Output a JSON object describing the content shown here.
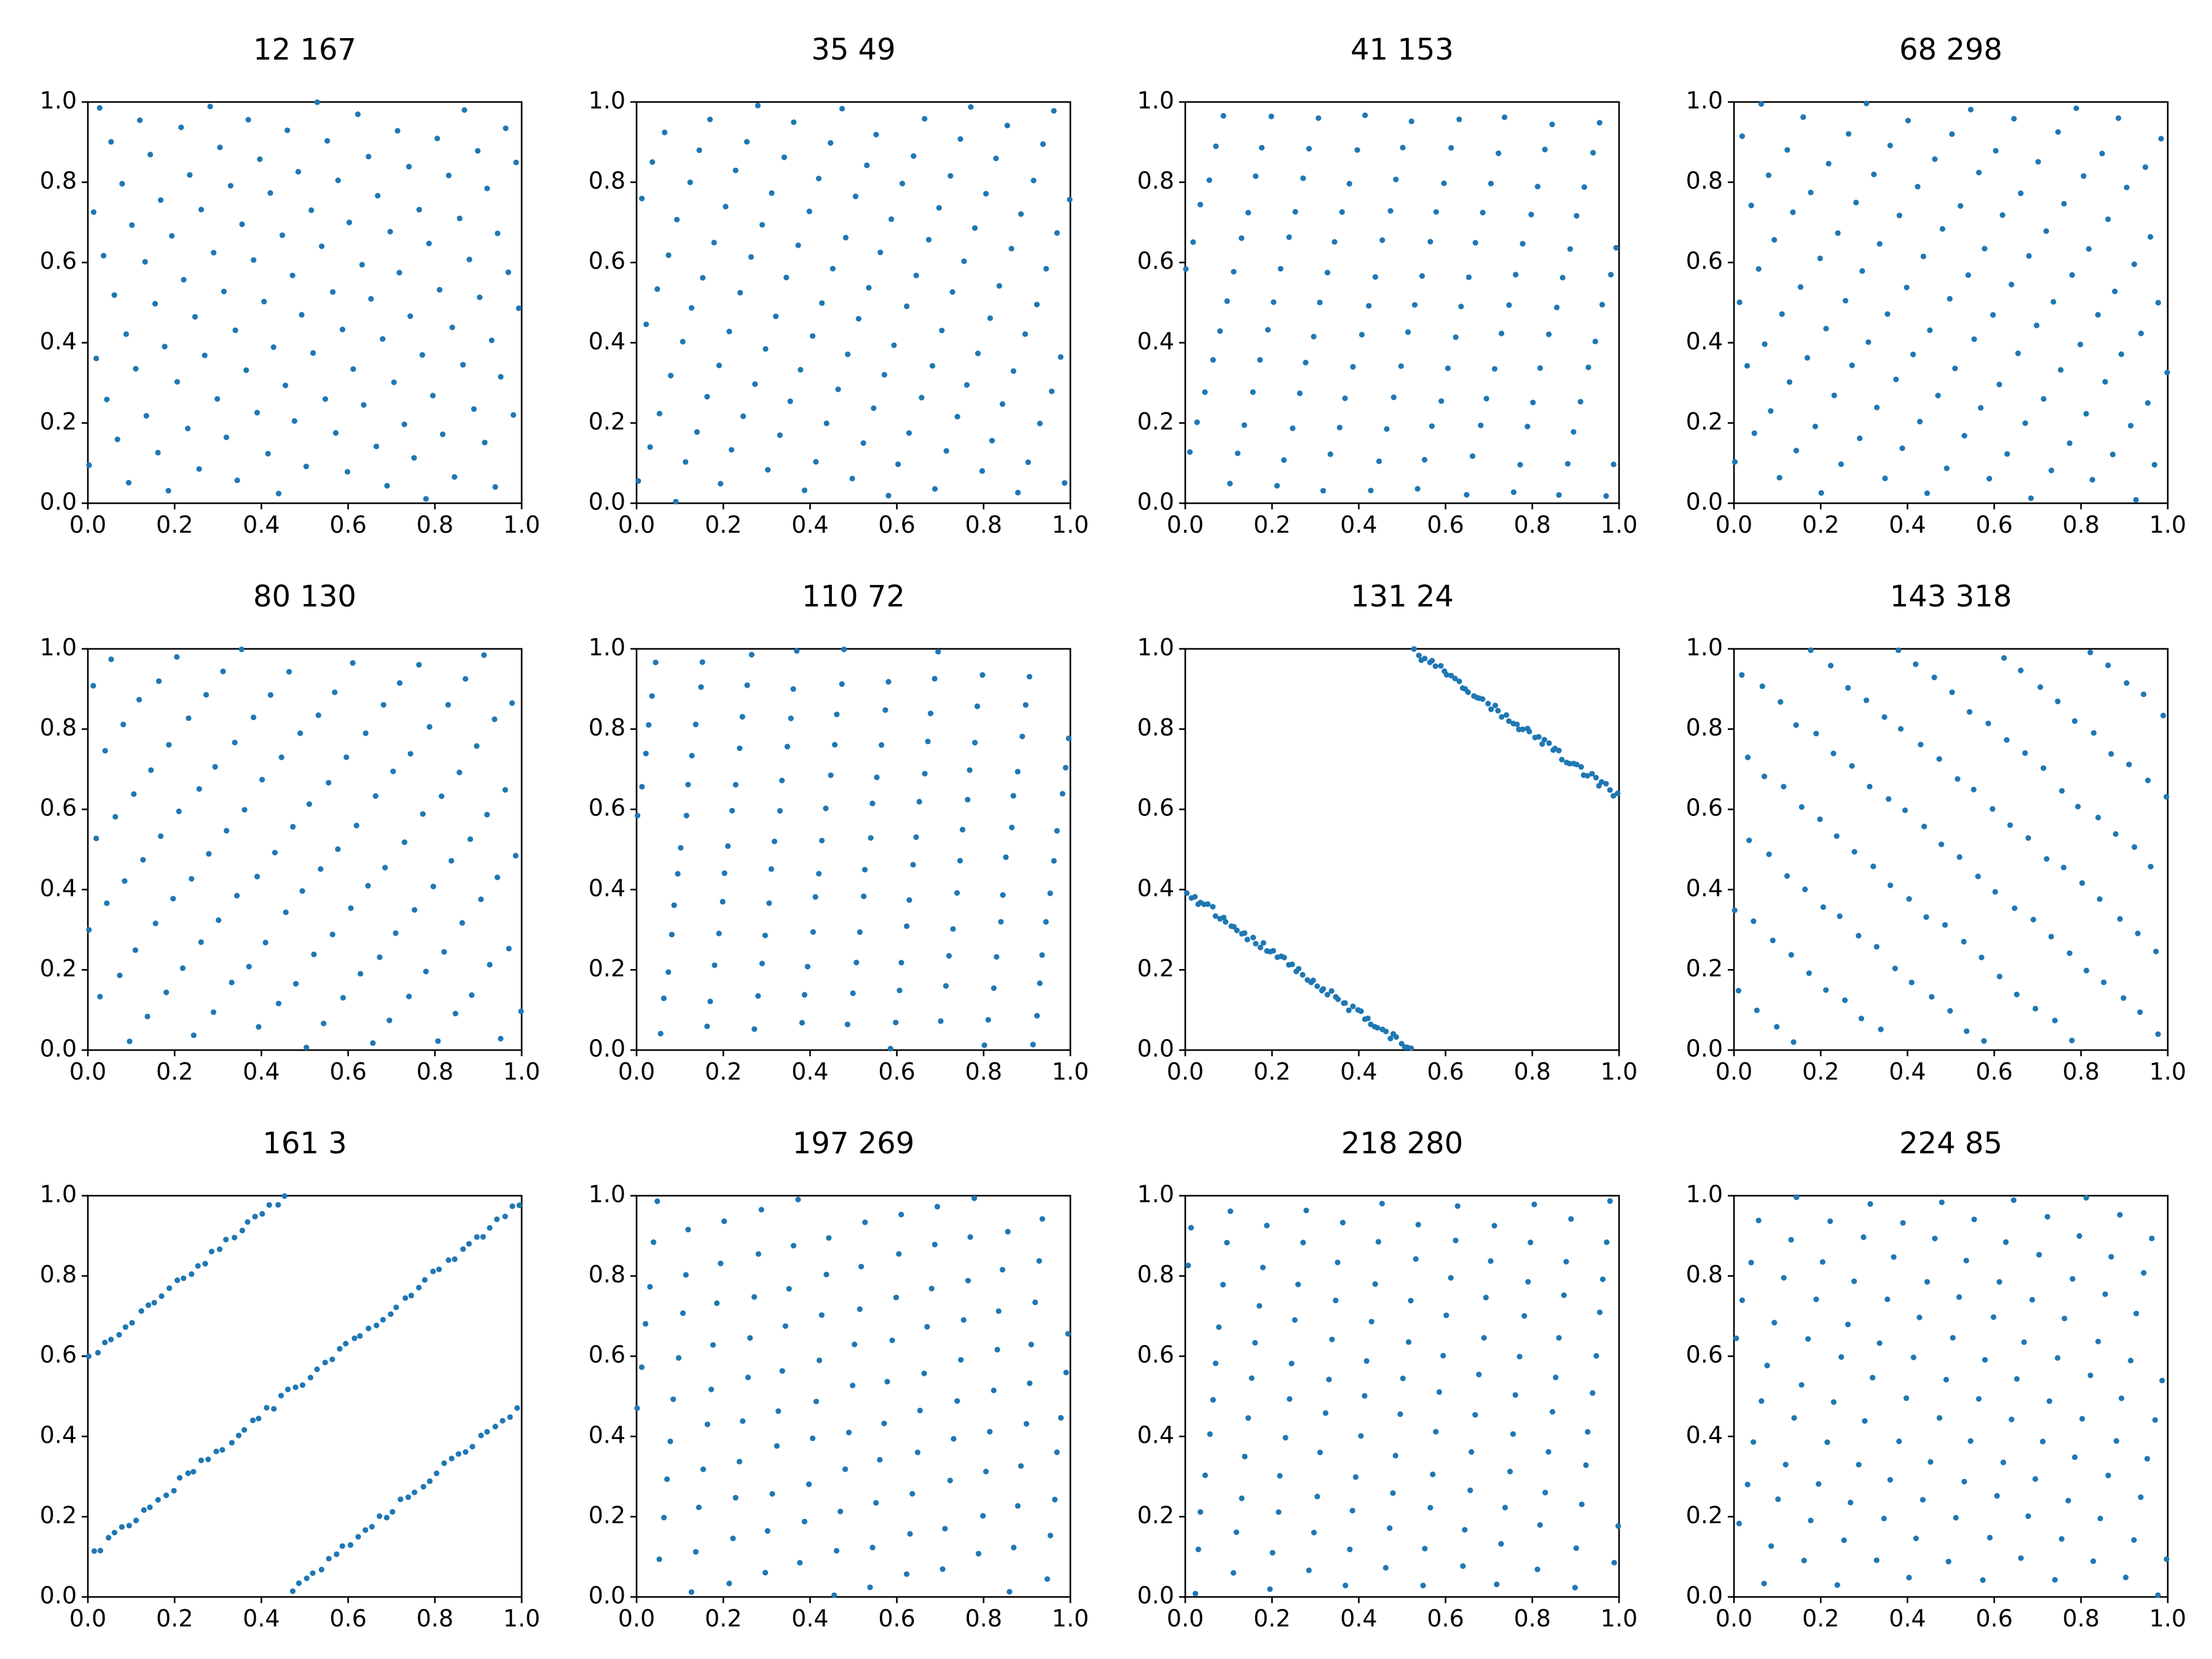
{
  "figure": {
    "title": ""
  },
  "chart_data": [
    {
      "type": "scatter",
      "title": "12 167",
      "xlim": [
        0,
        1
      ],
      "ylim": [
        0,
        1
      ],
      "xticks": [
        "0.0",
        "0.2",
        "0.4",
        "0.6",
        "0.8",
        "1.0"
      ],
      "yticks": [
        "0.0",
        "0.2",
        "0.4",
        "0.6",
        "0.8",
        "1.0"
      ],
      "color": "#1f77b4",
      "grid": false,
      "params": [
        12,
        167
      ],
      "count": 120
    },
    {
      "type": "scatter",
      "title": "35 49",
      "xlim": [
        0,
        1
      ],
      "ylim": [
        0,
        1
      ],
      "xticks": [
        "0.0",
        "0.2",
        "0.4",
        "0.6",
        "0.8",
        "1.0"
      ],
      "yticks": [
        "0.0",
        "0.2",
        "0.4",
        "0.6",
        "0.8",
        "1.0"
      ],
      "color": "#1f77b4",
      "grid": false,
      "params": [
        35,
        49
      ],
      "count": 120
    },
    {
      "type": "scatter",
      "title": "41 153",
      "xlim": [
        0,
        1
      ],
      "ylim": [
        0,
        1
      ],
      "xticks": [
        "0.0",
        "0.2",
        "0.4",
        "0.6",
        "0.8",
        "1.0"
      ],
      "yticks": [
        "0.0",
        "0.2",
        "0.4",
        "0.6",
        "0.8",
        "1.0"
      ],
      "color": "#1f77b4",
      "grid": false,
      "params": [
        41,
        153
      ],
      "count": 120
    },
    {
      "type": "scatter",
      "title": "68 298",
      "xlim": [
        0,
        1
      ],
      "ylim": [
        0,
        1
      ],
      "xticks": [
        "0.0",
        "0.2",
        "0.4",
        "0.6",
        "0.8",
        "1.0"
      ],
      "yticks": [
        "0.0",
        "0.2",
        "0.4",
        "0.6",
        "0.8",
        "1.0"
      ],
      "color": "#1f77b4",
      "grid": false,
      "params": [
        68,
        298
      ],
      "count": 120
    },
    {
      "type": "scatter",
      "title": "80 130",
      "xlim": [
        0,
        1
      ],
      "ylim": [
        0,
        1
      ],
      "xticks": [
        "0.0",
        "0.2",
        "0.4",
        "0.6",
        "0.8",
        "1.0"
      ],
      "yticks": [
        "0.0",
        "0.2",
        "0.4",
        "0.6",
        "0.8",
        "1.0"
      ],
      "color": "#1f77b4",
      "grid": false,
      "params": [
        80,
        130
      ],
      "count": 120
    },
    {
      "type": "scatter",
      "title": "110 72",
      "xlim": [
        0,
        1
      ],
      "ylim": [
        0,
        1
      ],
      "xticks": [
        "0.0",
        "0.2",
        "0.4",
        "0.6",
        "0.8",
        "1.0"
      ],
      "yticks": [
        "0.0",
        "0.2",
        "0.4",
        "0.6",
        "0.8",
        "1.0"
      ],
      "color": "#1f77b4",
      "grid": false,
      "params": [
        110,
        72
      ],
      "count": 120
    },
    {
      "type": "scatter",
      "title": "131 24",
      "xlim": [
        0,
        1
      ],
      "ylim": [
        0,
        1
      ],
      "xticks": [
        "0.0",
        "0.2",
        "0.4",
        "0.6",
        "0.8",
        "1.0"
      ],
      "yticks": [
        "0.0",
        "0.2",
        "0.4",
        "0.6",
        "0.8",
        "1.0"
      ],
      "color": "#1f77b4",
      "grid": false,
      "params": [
        131,
        24
      ],
      "count": 120
    },
    {
      "type": "scatter",
      "title": "143 318",
      "xlim": [
        0,
        1
      ],
      "ylim": [
        0,
        1
      ],
      "xticks": [
        "0.0",
        "0.2",
        "0.4",
        "0.6",
        "0.8",
        "1.0"
      ],
      "yticks": [
        "0.0",
        "0.2",
        "0.4",
        "0.6",
        "0.8",
        "1.0"
      ],
      "color": "#1f77b4",
      "grid": false,
      "params": [
        143,
        318
      ],
      "count": 120
    },
    {
      "type": "scatter",
      "title": "161 3",
      "xlim": [
        0,
        1
      ],
      "ylim": [
        0,
        1
      ],
      "xticks": [
        "0.0",
        "0.2",
        "0.4",
        "0.6",
        "0.8",
        "1.0"
      ],
      "yticks": [
        "0.0",
        "0.2",
        "0.4",
        "0.6",
        "0.8",
        "1.0"
      ],
      "color": "#1f77b4",
      "grid": false,
      "params": [
        161,
        3
      ],
      "count": 120
    },
    {
      "type": "scatter",
      "title": "197 269",
      "xlim": [
        0,
        1
      ],
      "ylim": [
        0,
        1
      ],
      "xticks": [
        "0.0",
        "0.2",
        "0.4",
        "0.6",
        "0.8",
        "1.0"
      ],
      "yticks": [
        "0.0",
        "0.2",
        "0.4",
        "0.6",
        "0.8",
        "1.0"
      ],
      "color": "#1f77b4",
      "grid": false,
      "params": [
        197,
        269
      ],
      "count": 120
    },
    {
      "type": "scatter",
      "title": "218 280",
      "xlim": [
        0,
        1
      ],
      "ylim": [
        0,
        1
      ],
      "xticks": [
        "0.0",
        "0.2",
        "0.4",
        "0.6",
        "0.8",
        "1.0"
      ],
      "yticks": [
        "0.0",
        "0.2",
        "0.4",
        "0.6",
        "0.8",
        "1.0"
      ],
      "color": "#1f77b4",
      "grid": false,
      "params": [
        218,
        280
      ],
      "count": 120
    },
    {
      "type": "scatter",
      "title": "224 85",
      "xlim": [
        0,
        1
      ],
      "ylim": [
        0,
        1
      ],
      "xticks": [
        "0.0",
        "0.2",
        "0.4",
        "0.6",
        "0.8",
        "1.0"
      ],
      "yticks": [
        "0.0",
        "0.2",
        "0.4",
        "0.6",
        "0.8",
        "1.0"
      ],
      "color": "#1f77b4",
      "grid": false,
      "params": [
        224,
        85
      ],
      "count": 120
    }
  ]
}
